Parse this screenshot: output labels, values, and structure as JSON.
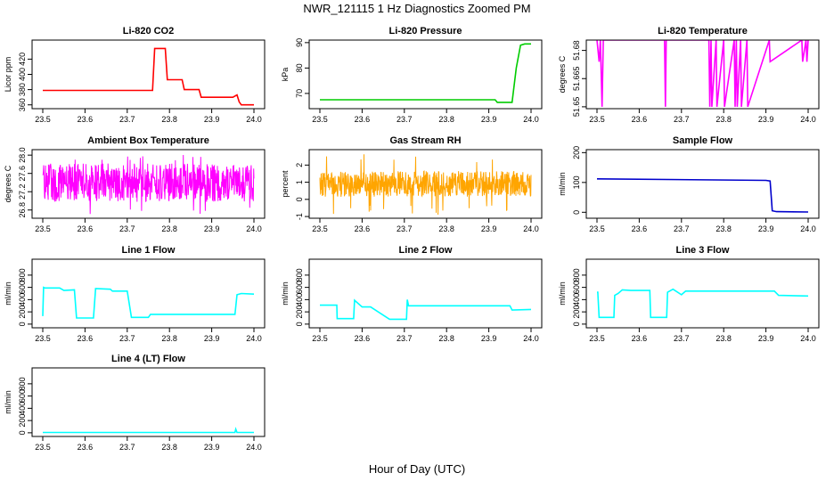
{
  "figure": {
    "title": "NWR_121115  1 Hz Diagnostics Zoomed PM",
    "xlabel": "Hour of Day (UTC)"
  },
  "chart_data": [
    {
      "type": "line",
      "title": "Li-820 CO2",
      "ylabel": "Licor ppm",
      "color": "#ff0000",
      "xlim": [
        23.5,
        24.0
      ],
      "ylim": [
        355,
        445
      ],
      "xticks": [
        "23.5",
        "23.6",
        "23.7",
        "23.8",
        "23.9",
        "24.0"
      ],
      "yticks": [
        {
          "v": 360,
          "label": "360"
        },
        {
          "v": 380,
          "label": "380"
        },
        {
          "v": 400,
          "label": "400"
        },
        {
          "v": 420,
          "label": "420"
        }
      ],
      "series": [
        {
          "x": [
            23.5,
            23.76,
            23.765,
            23.79,
            23.795,
            23.83,
            23.835,
            23.87,
            23.875,
            23.95,
            23.96,
            23.965,
            23.97,
            24.0
          ],
          "y": [
            379,
            379,
            434,
            434,
            393,
            393,
            380,
            380,
            370,
            370,
            373,
            364,
            360,
            360
          ]
        }
      ]
    },
    {
      "type": "line",
      "title": "Li-820 Pressure",
      "ylabel": "kPa",
      "color": "#00cc00",
      "xlim": [
        23.5,
        24.0
      ],
      "ylim": [
        64,
        91
      ],
      "xticks": [
        "23.5",
        "23.6",
        "23.7",
        "23.8",
        "23.9",
        "24.0"
      ],
      "yticks": [
        {
          "v": 70,
          "label": "70"
        },
        {
          "v": 80,
          "label": "80"
        },
        {
          "v": 90,
          "label": "90"
        }
      ],
      "series": [
        {
          "x": [
            23.5,
            23.915,
            23.92,
            23.955,
            23.965,
            23.975,
            23.985,
            24.0
          ],
          "y": [
            67.5,
            67.5,
            66.5,
            66.5,
            80,
            89,
            89.5,
            89.5
          ]
        }
      ]
    },
    {
      "type": "line",
      "title": "Li-820 Temperature",
      "ylabel": "degrees C",
      "color": "#ff00ff",
      "xlim": [
        23.5,
        24.0
      ],
      "ylim": [
        51.649,
        51.6855
      ],
      "xticks": [
        "23.5",
        "23.6",
        "23.7",
        "23.8",
        "23.9",
        "24.0"
      ],
      "yticks": [
        {
          "v": 51.65,
          "label": "51.65"
        },
        {
          "v": 51.665,
          "label": "51.665"
        },
        {
          "v": 51.68,
          "label": "51.68"
        }
      ],
      "series": [
        {
          "x": [
            23.5,
            23.505,
            23.508,
            23.512,
            23.515,
            23.66,
            23.662,
            23.664,
            23.765,
            23.767,
            23.77,
            23.772,
            23.782,
            23.784,
            23.8,
            23.802,
            23.825,
            23.827,
            23.83,
            23.832,
            23.84,
            23.842,
            23.855,
            23.857,
            23.908,
            23.91,
            23.985,
            23.987,
            23.995,
            23.997,
            24.0
          ],
          "y": [
            51.6855,
            51.674,
            51.6855,
            51.65,
            51.6855,
            51.6855,
            51.65,
            51.6855,
            51.6855,
            51.65,
            51.6855,
            51.65,
            51.6855,
            51.65,
            51.6855,
            51.65,
            51.6855,
            51.65,
            51.6855,
            51.65,
            51.6855,
            51.65,
            51.6855,
            51.65,
            51.6855,
            51.674,
            51.6855,
            51.674,
            51.6855,
            51.674,
            51.6855
          ]
        }
      ]
    },
    {
      "type": "line",
      "title": "Ambient Box Temperature",
      "ylabel": "degrees C",
      "color": "#ff00ff",
      "xlim": [
        23.5,
        24.0
      ],
      "ylim": [
        26.62,
        28.12
      ],
      "xticks": [
        "23.5",
        "23.6",
        "23.7",
        "23.8",
        "23.9",
        "24.0"
      ],
      "yticks": [
        {
          "v": 26.8,
          "label": "26.8"
        },
        {
          "v": 27.2,
          "label": "27.2"
        },
        {
          "v": 27.6,
          "label": "27.6"
        },
        {
          "v": 28.0,
          "label": "28.0"
        }
      ],
      "noise": {
        "x0": 23.5,
        "x1": 24.0,
        "center": 27.4,
        "amplitude": 0.42,
        "spike_min": 26.68,
        "spike_max": 28.05
      }
    },
    {
      "type": "line",
      "title": "Gas Stream RH",
      "ylabel": "percent",
      "color": "#ffa500",
      "xlim": [
        23.5,
        24.0
      ],
      "ylim": [
        -1.1,
        2.9
      ],
      "xticks": [
        "23.5",
        "23.6",
        "23.7",
        "23.8",
        "23.9",
        "24.0"
      ],
      "yticks": [
        {
          "v": -1,
          "label": "-1"
        },
        {
          "v": 0,
          "label": "0"
        },
        {
          "v": 1,
          "label": "1"
        },
        {
          "v": 2,
          "label": "2"
        }
      ],
      "noise": {
        "x0": 23.5,
        "x1": 24.0,
        "center": 0.9,
        "amplitude": 0.75,
        "spike_min": -0.9,
        "spike_max": 2.7
      }
    },
    {
      "type": "line",
      "title": "Sample Flow",
      "ylabel": "ml/min",
      "color": "#0000cc",
      "xlim": [
        23.5,
        24.0
      ],
      "ylim": [
        -20,
        210
      ],
      "xticks": [
        "23.5",
        "23.6",
        "23.7",
        "23.8",
        "23.9",
        "24.0"
      ],
      "yticks": [
        {
          "v": 0,
          "label": "0"
        },
        {
          "v": 100,
          "label": "100"
        },
        {
          "v": 200,
          "label": "200"
        }
      ],
      "series": [
        {
          "x": [
            23.5,
            23.9,
            23.91,
            23.915,
            23.925,
            24.0
          ],
          "y": [
            112,
            107,
            105,
            5,
            2,
            1
          ]
        }
      ]
    },
    {
      "type": "line",
      "title": "Line 1 Flow",
      "ylabel": "ml/min",
      "color": "#00ffff",
      "xlim": [
        23.5,
        24.0
      ],
      "ylim": [
        -60,
        1060
      ],
      "xticks": [
        "23.5",
        "23.6",
        "23.7",
        "23.8",
        "23.9",
        "24.0"
      ],
      "yticks": [
        {
          "v": 0,
          "label": "0"
        },
        {
          "v": 200,
          "label": "200"
        },
        {
          "v": 400,
          "label": "400"
        },
        {
          "v": 600,
          "label": "600"
        },
        {
          "v": 800,
          "label": "800"
        }
      ],
      "series": [
        {
          "x": [
            23.5,
            23.502,
            23.505,
            23.54,
            23.55,
            23.575,
            23.58,
            23.62,
            23.625,
            23.66,
            23.665,
            23.7,
            23.71,
            23.75,
            23.755,
            23.955,
            23.96,
            23.97,
            24.0
          ],
          "y": [
            130,
            600,
            590,
            590,
            550,
            560,
            100,
            100,
            580,
            570,
            540,
            540,
            110,
            110,
            160,
            160,
            480,
            500,
            490
          ]
        }
      ]
    },
    {
      "type": "line",
      "title": "Line 2 Flow",
      "ylabel": "ml/min",
      "color": "#00ffff",
      "xlim": [
        23.5,
        24.0
      ],
      "ylim": [
        -60,
        1060
      ],
      "xticks": [
        "23.5",
        "23.6",
        "23.7",
        "23.8",
        "23.9",
        "24.0"
      ],
      "yticks": [
        {
          "v": 0,
          "label": "0"
        },
        {
          "v": 200,
          "label": "200"
        },
        {
          "v": 400,
          "label": "400"
        },
        {
          "v": 600,
          "label": "600"
        },
        {
          "v": 800,
          "label": "800"
        }
      ],
      "series": [
        {
          "x": [
            23.5,
            23.54,
            23.541,
            23.58,
            23.582,
            23.6,
            23.62,
            23.665,
            23.667,
            23.705,
            23.707,
            23.71,
            23.95,
            23.955,
            24.0
          ],
          "y": [
            310,
            310,
            90,
            90,
            390,
            280,
            280,
            80,
            80,
            80,
            400,
            300,
            300,
            230,
            240
          ]
        }
      ]
    },
    {
      "type": "line",
      "title": "Line 3 Flow",
      "ylabel": "ml/min",
      "color": "#00ffff",
      "xlim": [
        23.5,
        24.0
      ],
      "ylim": [
        -60,
        1060
      ],
      "xticks": [
        "23.5",
        "23.6",
        "23.7",
        "23.8",
        "23.9",
        "24.0"
      ],
      "yticks": [
        {
          "v": 0,
          "label": "0"
        },
        {
          "v": 200,
          "label": "200"
        },
        {
          "v": 400,
          "label": "400"
        },
        {
          "v": 600,
          "label": "600"
        },
        {
          "v": 800,
          "label": "800"
        }
      ],
      "series": [
        {
          "x": [
            23.5,
            23.502,
            23.505,
            23.54,
            23.542,
            23.55,
            23.56,
            23.58,
            23.625,
            23.627,
            23.665,
            23.667,
            23.68,
            23.7,
            23.71,
            23.92,
            23.93,
            24.0
          ],
          "y": [
            520,
            520,
            110,
            110,
            470,
            500,
            560,
            550,
            550,
            110,
            110,
            520,
            570,
            480,
            540,
            540,
            470,
            460
          ]
        }
      ]
    },
    {
      "type": "line",
      "title": "Line 4 (LT) Flow",
      "ylabel": "ml/min",
      "color": "#00ffff",
      "xlim": [
        23.5,
        24.0
      ],
      "ylim": [
        -60,
        1060
      ],
      "xticks": [
        "23.5",
        "23.6",
        "23.7",
        "23.8",
        "23.9",
        "24.0"
      ],
      "yticks": [
        {
          "v": 0,
          "label": "0"
        },
        {
          "v": 200,
          "label": "200"
        },
        {
          "v": 400,
          "label": "400"
        },
        {
          "v": 600,
          "label": "600"
        },
        {
          "v": 800,
          "label": "800"
        }
      ],
      "series": [
        {
          "x": [
            23.5,
            23.955,
            23.957,
            23.96,
            23.962,
            24.0
          ],
          "y": [
            5,
            5,
            60,
            5,
            5,
            5
          ]
        }
      ]
    }
  ]
}
